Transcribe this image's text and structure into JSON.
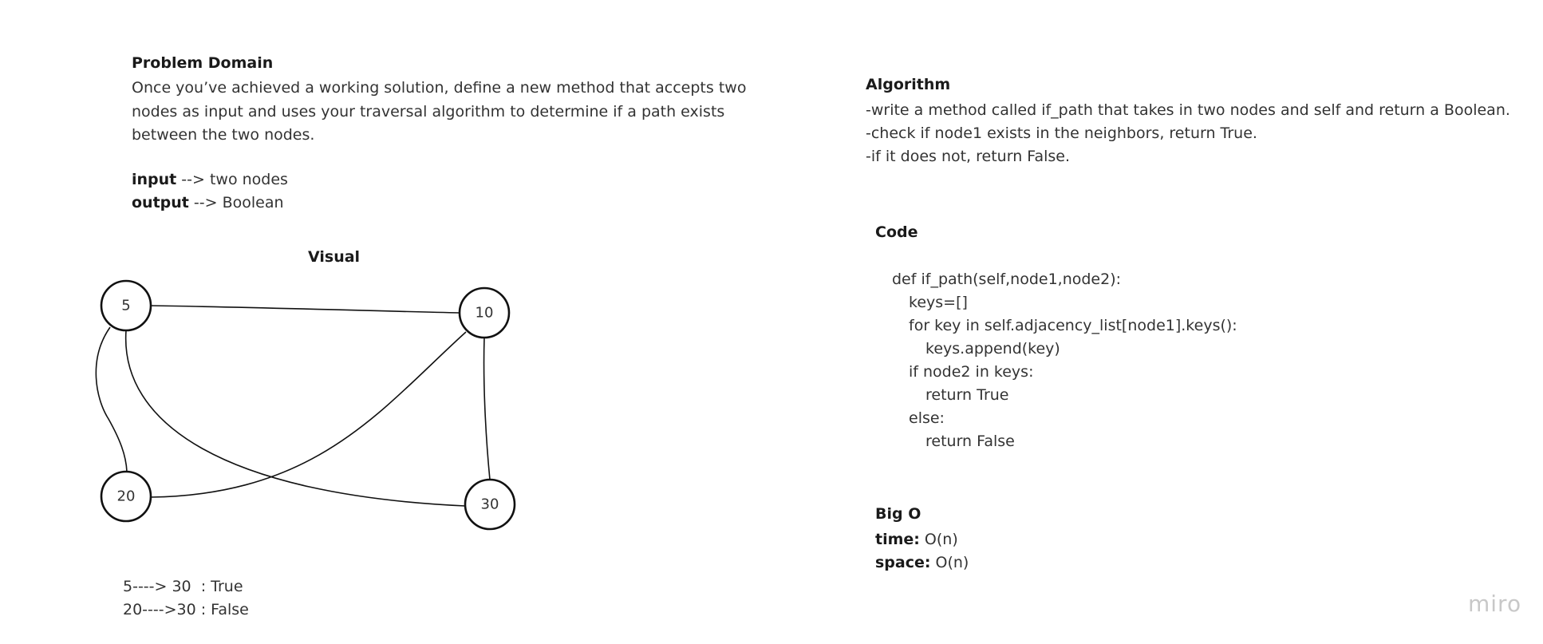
{
  "problem": {
    "heading": "Problem Domain",
    "text": "Once you’ve achieved a working solution, define a new method that accepts two nodes as input and uses your traversal algorithm to determine if a path exists between the two nodes.",
    "input_label": "input",
    "input_value": " --> two nodes",
    "output_label": "output",
    "output_value": " --> Boolean"
  },
  "visual": {
    "heading": "Visual",
    "nodes": [
      {
        "id": "5",
        "label": "5"
      },
      {
        "id": "10",
        "label": "10"
      },
      {
        "id": "20",
        "label": "20"
      },
      {
        "id": "30",
        "label": "30"
      }
    ],
    "edges": [
      {
        "from": "5",
        "to": "10"
      },
      {
        "from": "5",
        "to": "20"
      },
      {
        "from": "5",
        "to": "30"
      },
      {
        "from": "10",
        "to": "20"
      },
      {
        "from": "10",
        "to": "30"
      }
    ],
    "results": [
      "5----> 30  : True",
      "20---->30 : False"
    ]
  },
  "algorithm": {
    "heading": "Algorithm",
    "steps": [
      "-write a method called if_path that takes in two nodes and self and return a Boolean.",
      "-check if node1 exists in the neighbors, return True.",
      "-if it does not, return False."
    ]
  },
  "code": {
    "heading": "Code",
    "lines": [
      {
        "text": "def if_path(self,node1,node2):",
        "indent": 0
      },
      {
        "text": "keys=[]",
        "indent": 1
      },
      {
        "text": "for key in self.adjacency_list[node1].keys():",
        "indent": 1
      },
      {
        "text": "keys.append(key)",
        "indent": 2
      },
      {
        "text": "if node2 in keys:",
        "indent": 1
      },
      {
        "text": "return True",
        "indent": 2
      },
      {
        "text": "else:",
        "indent": 1
      },
      {
        "text": "return False",
        "indent": 2
      }
    ]
  },
  "bigo": {
    "heading": "Big O",
    "time_label": "time:",
    "time_value": " O(n)",
    "space_label": "space:",
    "space_value": " O(n)"
  },
  "brand": "miro"
}
